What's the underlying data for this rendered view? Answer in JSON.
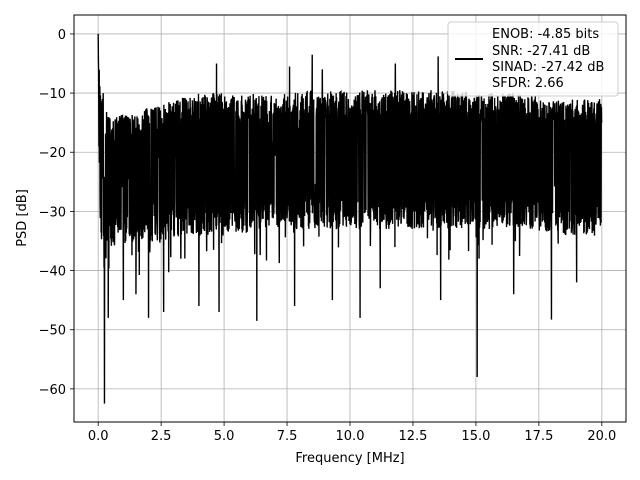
{
  "chart_data": {
    "type": "line",
    "title": "",
    "xlabel": "Frequency [MHz]",
    "ylabel": "PSD [dB]",
    "xlim": [
      -0.96,
      20.96
    ],
    "ylim": [
      -65.6,
      3.2
    ],
    "x_ticks": [
      0.0,
      2.5,
      5.0,
      7.5,
      10.0,
      12.5,
      15.0,
      17.5,
      20.0
    ],
    "x_tick_labels": [
      "0.0",
      "2.5",
      "5.0",
      "7.5",
      "10.0",
      "12.5",
      "15.0",
      "17.5",
      "20.0"
    ],
    "y_ticks": [
      0,
      -10,
      -20,
      -30,
      -40,
      -50,
      -60
    ],
    "y_tick_labels": [
      "0",
      "−10",
      "−20",
      "−30",
      "−40",
      "−50",
      "−60"
    ],
    "grid": true,
    "legend": {
      "placement": "top-right",
      "entries": [
        "ENOB: -4.85 bits",
        "SNR: -27.41 dB",
        "SINAD: -27.42 dB",
        "SFDR: 2.66"
      ]
    },
    "series": [
      {
        "color": "#000000",
        "envelope": {
          "x": [
            0.0,
            0.05,
            0.1,
            0.3,
            0.5,
            1.0,
            1.5,
            2.0,
            2.5,
            3.0,
            3.5,
            4.0,
            4.5,
            5.0,
            5.5,
            6.0,
            6.5,
            7.0,
            7.5,
            8.0,
            8.5,
            9.0,
            9.5,
            10.0,
            10.5,
            11.0,
            11.5,
            12.0,
            12.5,
            13.0,
            13.5,
            14.0,
            14.5,
            15.0,
            15.5,
            16.0,
            16.5,
            17.0,
            17.5,
            18.0,
            18.5,
            19.0,
            19.5,
            20.0
          ],
          "upper": [
            0,
            -6,
            -9,
            -13,
            -14,
            -13.5,
            -13,
            -12.5,
            -12,
            -11,
            -10.5,
            -10,
            -10,
            -10,
            -10,
            -10,
            -10,
            -10,
            -10,
            -9.5,
            -9.5,
            -9.5,
            -9.5,
            -9.5,
            -9.5,
            -9.5,
            -9.5,
            -9.5,
            -9.5,
            -9.5,
            -9.5,
            -9.5,
            -9.5,
            -10,
            -10,
            -10,
            -10,
            -10.5,
            -10.5,
            -11,
            -11,
            -11,
            -11,
            -11
          ],
          "lower": [
            -8,
            -26,
            -35,
            -36,
            -36,
            -35.5,
            -35,
            -35,
            -35,
            -34.5,
            -34,
            -34,
            -34,
            -33.5,
            -33.5,
            -33,
            -33,
            -33,
            -33,
            -33,
            -33,
            -33,
            -33,
            -33,
            -33,
            -33,
            -33,
            -33,
            -33,
            -33,
            -33,
            -33,
            -33,
            -33,
            -33,
            -33,
            -33,
            -33,
            -33.5,
            -33.5,
            -34,
            -34,
            -34,
            -34
          ]
        },
        "peaks": [
          {
            "x": 0.0,
            "y": 0
          },
          {
            "x": 0.2,
            "y": -10
          },
          {
            "x": 4.7,
            "y": -5
          },
          {
            "x": 6.3,
            "y": -4.7
          },
          {
            "x": 7.6,
            "y": -5.5
          },
          {
            "x": 8.5,
            "y": -3.5
          },
          {
            "x": 8.9,
            "y": -6
          },
          {
            "x": 11.8,
            "y": -5
          },
          {
            "x": 13.5,
            "y": -3.8
          },
          {
            "x": 18.0,
            "y": -6.5
          }
        ],
        "dips": [
          {
            "x": 0.25,
            "y": -62.5
          },
          {
            "x": 0.4,
            "y": -48
          },
          {
            "x": 1.0,
            "y": -45
          },
          {
            "x": 1.5,
            "y": -44
          },
          {
            "x": 2.0,
            "y": -48
          },
          {
            "x": 2.6,
            "y": -47
          },
          {
            "x": 4.0,
            "y": -46
          },
          {
            "x": 4.8,
            "y": -47
          },
          {
            "x": 6.3,
            "y": -48.5
          },
          {
            "x": 7.8,
            "y": -46
          },
          {
            "x": 9.3,
            "y": -45
          },
          {
            "x": 10.4,
            "y": -48
          },
          {
            "x": 11.2,
            "y": -43
          },
          {
            "x": 13.6,
            "y": -45
          },
          {
            "x": 15.05,
            "y": -58
          },
          {
            "x": 16.5,
            "y": -44
          },
          {
            "x": 18.0,
            "y": -48.3
          },
          {
            "x": 19.0,
            "y": -42
          }
        ]
      }
    ]
  }
}
